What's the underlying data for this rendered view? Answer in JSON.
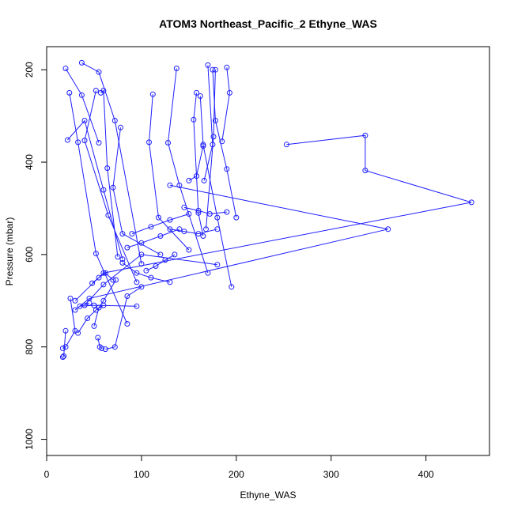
{
  "chart_data": {
    "type": "line",
    "title": "ATOM3 Northeast_Pacific_2 Ethyne_WAS",
    "xlabel": "Ethyne_WAS",
    "ylabel": "Pressure (mbar)",
    "xlim": [
      0,
      467
    ],
    "ylim": [
      1035,
      150
    ],
    "y_reversed": true,
    "x_ticks": [
      0,
      100,
      200,
      300,
      400
    ],
    "y_ticks": [
      200,
      400,
      600,
      800,
      1000
    ],
    "grid": false,
    "legend": "none",
    "color": "#1f1fff",
    "series": [
      {
        "x": [
          20,
          37,
          55
        ],
        "y": [
          197,
          255,
          358
        ]
      },
      {
        "x": [
          24,
          33,
          52,
          85
        ],
        "y": [
          250,
          357,
          598,
          750
        ]
      },
      {
        "x": [
          22,
          40,
          60,
          80
        ],
        "y": [
          352,
          310,
          460,
          610
        ]
      },
      {
        "x": [
          37,
          55,
          72,
          100
        ],
        "y": [
          185,
          205,
          310,
          620
        ]
      },
      {
        "x": [
          57,
          60,
          64,
          75
        ],
        "y": [
          250,
          245,
          413,
          605
        ]
      },
      {
        "x": [
          52,
          40,
          65,
          95
        ],
        "y": [
          245,
          353,
          515,
          660
        ]
      },
      {
        "x": [
          78,
          70,
          80,
          120
        ],
        "y": [
          325,
          455,
          555,
          600
        ]
      },
      {
        "x": [
          112,
          108,
          118,
          150
        ],
        "y": [
          253,
          357,
          520,
          590
        ]
      },
      {
        "x": [
          137,
          128,
          140,
          170
        ],
        "y": [
          197,
          358,
          450,
          640
        ]
      },
      {
        "x": [
          158,
          155,
          160,
          165
        ],
        "y": [
          250,
          308,
          510,
          560
        ]
      },
      {
        "x": [
          162,
          165,
          180,
          195
        ],
        "y": [
          257,
          362,
          520,
          670
        ]
      },
      {
        "x": [
          175,
          178,
          190,
          200
        ],
        "y": [
          200,
          310,
          415,
          520
        ]
      },
      {
        "x": [
          190,
          193,
          185
        ],
        "y": [
          195,
          250,
          355
        ]
      },
      {
        "x": [
          178,
          176,
          168
        ],
        "y": [
          200,
          345,
          545
        ]
      },
      {
        "x": [
          170,
          175,
          166
        ],
        "y": [
          190,
          362,
          440
        ]
      },
      {
        "x": [
          150,
          158,
          165
        ],
        "y": [
          440,
          430,
          365
        ]
      },
      {
        "x": [
          253,
          336,
          336,
          448,
          60,
          30
        ],
        "y": [
          362,
          342,
          418,
          487,
          640,
          700
        ]
      },
      {
        "x": [
          130,
          360,
          45,
          30
        ],
        "y": [
          450,
          545,
          695,
          720
        ]
      },
      {
        "x": [
          180,
          100,
          60,
          40
        ],
        "y": [
          622,
          600,
          665,
          710
        ]
      },
      {
        "x": [
          54,
          56,
          58
        ],
        "y": [
          780,
          800,
          803
        ]
      },
      {
        "x": [
          20,
          18,
          17
        ],
        "y": [
          765,
          820,
          822
        ]
      },
      {
        "x": [
          25,
          30,
          20,
          17
        ],
        "y": [
          695,
          765,
          800,
          803
        ]
      },
      {
        "x": [
          45,
          35,
          50,
          95
        ],
        "y": [
          705,
          712,
          710,
          712
        ]
      },
      {
        "x": [
          60,
          52,
          43,
          33
        ],
        "y": [
          710,
          720,
          738,
          770
        ]
      },
      {
        "x": [
          73,
          60,
          55,
          50
        ],
        "y": [
          655,
          700,
          715,
          755
        ]
      },
      {
        "x": [
          62,
          72,
          85,
          100
        ],
        "y": [
          805,
          800,
          690,
          670
        ]
      },
      {
        "x": [
          48,
          55,
          62,
          70
        ],
        "y": [
          662,
          650,
          640,
          655
        ]
      },
      {
        "x": [
          80,
          95,
          110,
          130
        ],
        "y": [
          618,
          640,
          650,
          660
        ]
      },
      {
        "x": [
          105,
          115,
          125,
          135
        ],
        "y": [
          635,
          625,
          612,
          600
        ]
      },
      {
        "x": [
          85,
          100,
          120,
          140
        ],
        "y": [
          585,
          575,
          560,
          545
        ]
      },
      {
        "x": [
          90,
          110,
          130,
          150
        ],
        "y": [
          555,
          540,
          525,
          512
        ]
      },
      {
        "x": [
          130,
          145,
          160,
          180
        ],
        "y": [
          545,
          550,
          555,
          545
        ]
      },
      {
        "x": [
          145,
          160,
          172,
          190
        ],
        "y": [
          498,
          505,
          512,
          508
        ]
      }
    ]
  }
}
